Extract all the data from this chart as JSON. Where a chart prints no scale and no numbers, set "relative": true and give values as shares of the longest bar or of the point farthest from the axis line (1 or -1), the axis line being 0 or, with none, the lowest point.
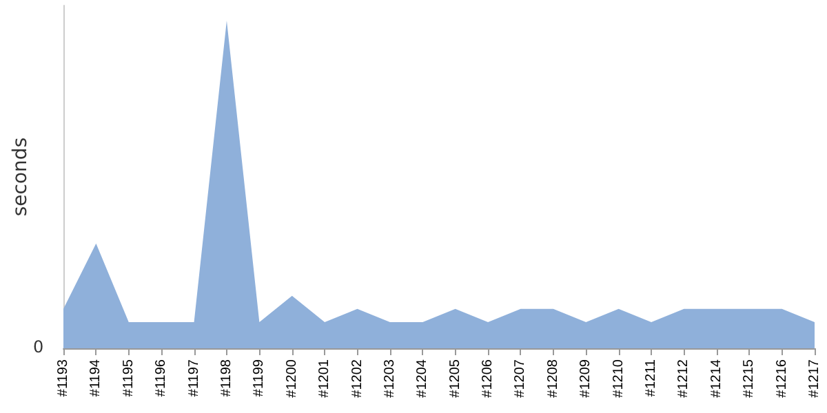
{
  "chart_data": {
    "type": "area",
    "relative": true,
    "ylabel": "seconds",
    "color": "#8fb0da",
    "grid": false,
    "categories": [
      "#1193",
      "#1194",
      "#1195",
      "#1196",
      "#1197",
      "#1198",
      "#1199",
      "#1200",
      "#1201",
      "#1202",
      "#1203",
      "#1204",
      "#1205",
      "#1206",
      "#1207",
      "#1208",
      "#1209",
      "#1210",
      "#1211",
      "#1212",
      "#1214",
      "#1215",
      "#1216",
      "#1217"
    ],
    "values": [
      0.12,
      0.32,
      0.08,
      0.08,
      0.08,
      1,
      0.08,
      0.16,
      0.08,
      0.12,
      0.08,
      0.08,
      0.12,
      0.08,
      0.12,
      0.12,
      0.08,
      0.12,
      0.08,
      0.12,
      0.12,
      0.12,
      0.12,
      0.08
    ],
    "annotations": [
      "0"
    ]
  }
}
